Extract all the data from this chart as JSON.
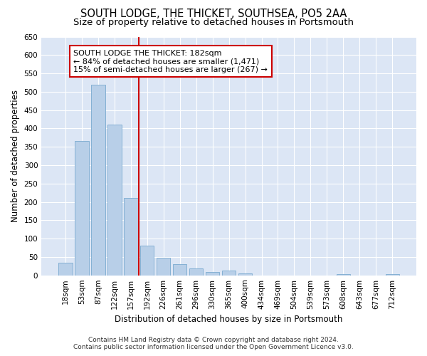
{
  "title": "SOUTH LODGE, THE THICKET, SOUTHSEA, PO5 2AA",
  "subtitle": "Size of property relative to detached houses in Portsmouth",
  "xlabel": "Distribution of detached houses by size in Portsmouth",
  "ylabel": "Number of detached properties",
  "bar_labels": [
    "18sqm",
    "53sqm",
    "87sqm",
    "122sqm",
    "157sqm",
    "192sqm",
    "226sqm",
    "261sqm",
    "296sqm",
    "330sqm",
    "365sqm",
    "400sqm",
    "434sqm",
    "469sqm",
    "504sqm",
    "539sqm",
    "573sqm",
    "608sqm",
    "643sqm",
    "677sqm",
    "712sqm"
  ],
  "bar_values": [
    35,
    365,
    520,
    410,
    210,
    80,
    47,
    30,
    18,
    10,
    12,
    5,
    0,
    0,
    0,
    0,
    0,
    3,
    0,
    0,
    3
  ],
  "bar_color": "#b8cfe8",
  "bar_edge_color": "#7aaacf",
  "highlight_color": "#cc0000",
  "vline_x": 4.5,
  "ylim": [
    0,
    650
  ],
  "yticks": [
    0,
    50,
    100,
    150,
    200,
    250,
    300,
    350,
    400,
    450,
    500,
    550,
    600,
    650
  ],
  "annotation_text_line1": "SOUTH LODGE THE THICKET: 182sqm",
  "annotation_text_line2": "← 84% of detached houses are smaller (1,471)",
  "annotation_text_line3": "15% of semi-detached houses are larger (267) →",
  "background_color": "#dce6f5",
  "plot_bg_color": "#dce6f5",
  "footer_line1": "Contains HM Land Registry data © Crown copyright and database right 2024.",
  "footer_line2": "Contains public sector information licensed under the Open Government Licence v3.0.",
  "title_fontsize": 10.5,
  "subtitle_fontsize": 9.5,
  "tick_fontsize": 7.5,
  "ylabel_fontsize": 8.5,
  "annotation_fontsize": 8
}
